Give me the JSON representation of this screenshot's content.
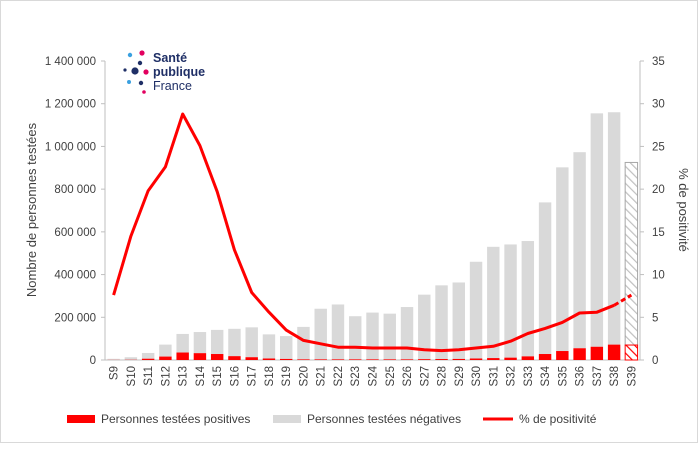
{
  "chart_data": {
    "type": "bar",
    "categories": [
      "S9",
      "S10",
      "S11",
      "S12",
      "S13",
      "S14",
      "S15",
      "S16",
      "S17",
      "S18",
      "S19",
      "S20",
      "S21",
      "S22",
      "S23",
      "S24",
      "S25",
      "S26",
      "S27",
      "S28",
      "S29",
      "S30",
      "S31",
      "S32",
      "S33",
      "S34",
      "S35",
      "S36",
      "S37",
      "S38",
      "S39"
    ],
    "series": [
      {
        "name": "Personnes testées positives",
        "type": "bar",
        "axis": "left",
        "color": "#ff0000",
        "values": [
          500,
          1000,
          6000,
          16000,
          35000,
          32000,
          28000,
          18000,
          13000,
          7000,
          5000,
          3000,
          3000,
          3000,
          3000,
          3000,
          3000,
          3000,
          4000,
          4500,
          5000,
          7000,
          9000,
          11000,
          17000,
          28000,
          42000,
          55000,
          62000,
          72000,
          70000
        ]
      },
      {
        "name": "Personnes testées négatives",
        "type": "bar",
        "axis": "left",
        "color": "#d9d9d9",
        "values": [
          5000,
          12000,
          27000,
          56000,
          87000,
          99000,
          113000,
          128000,
          140000,
          113000,
          107000,
          152000,
          237000,
          257000,
          202000,
          219000,
          214000,
          245000,
          302000,
          345000,
          358000,
          453000,
          521000,
          530000,
          540000,
          710000,
          860000,
          918000,
          1093000,
          1088000,
          855000
        ]
      },
      {
        "name": "% de positivité",
        "type": "line",
        "axis": "right",
        "color": "#ff0000",
        "values": [
          7.6,
          14.5,
          19.8,
          22.6,
          28.8,
          25.1,
          19.7,
          12.9,
          7.9,
          5.6,
          3.5,
          2.3,
          1.9,
          1.5,
          1.5,
          1.4,
          1.4,
          1.4,
          1.2,
          1.1,
          1.2,
          1.4,
          1.6,
          2.2,
          3.1,
          3.7,
          4.4,
          5.5,
          5.6,
          6.4,
          7.6
        ]
      }
    ],
    "hatched_last_bar": true,
    "ylabel": "Nombre de personnes testées",
    "y2label": "% de positivité",
    "ylim": [
      0,
      1400000
    ],
    "y2lim": [
      0,
      35
    ],
    "yticks": [
      0,
      200000,
      400000,
      600000,
      800000,
      1000000,
      1200000,
      1400000
    ],
    "y2ticks": [
      0,
      5,
      10,
      15,
      20,
      25,
      30,
      35
    ],
    "ytick_labels": [
      "0",
      "200 000",
      "400 000",
      "600 000",
      "800 000",
      "1 000 000",
      "1 200 000",
      "1 400 000"
    ],
    "y2tick_labels": [
      "0",
      "5",
      "10",
      "15",
      "20",
      "25",
      "30",
      "35"
    ],
    "legend_position": "bottom",
    "grid": false
  },
  "logo": {
    "line1": "Santé",
    "line2": "publique",
    "line3": "France"
  }
}
